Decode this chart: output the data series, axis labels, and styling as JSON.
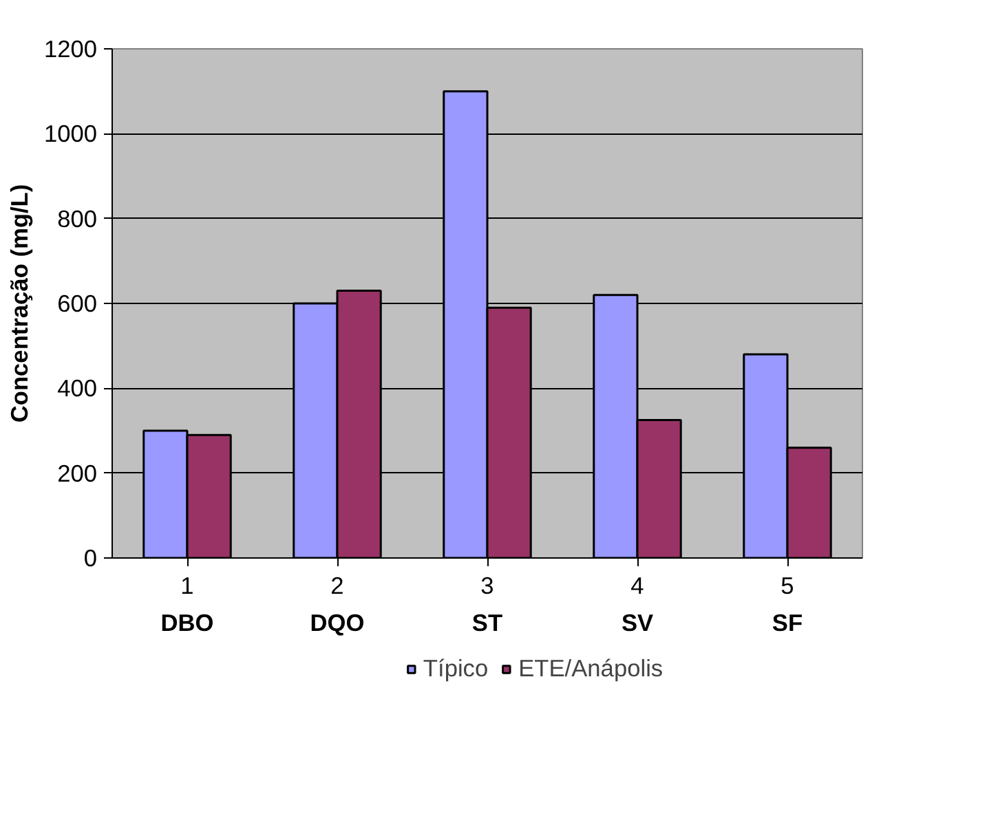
{
  "chart_data": {
    "type": "bar",
    "ylabel": "Concentração (mg/L)",
    "categories": [
      "1",
      "2",
      "3",
      "4",
      "5"
    ],
    "annotations": [
      "DBO",
      "DQO",
      "ST",
      "SV",
      "SF"
    ],
    "series": [
      {
        "name": "Típico",
        "color": "#9999ff",
        "values": [
          300,
          600,
          1100,
          620,
          480
        ]
      },
      {
        "name": "ETE/Anápolis",
        "color": "#993366",
        "values": [
          290,
          630,
          590,
          325,
          260
        ]
      }
    ],
    "ylim": [
      0,
      1200
    ],
    "yticks": [
      0,
      200,
      400,
      600,
      800,
      1000,
      1200
    ],
    "grid": "y",
    "legend": "bottom"
  }
}
